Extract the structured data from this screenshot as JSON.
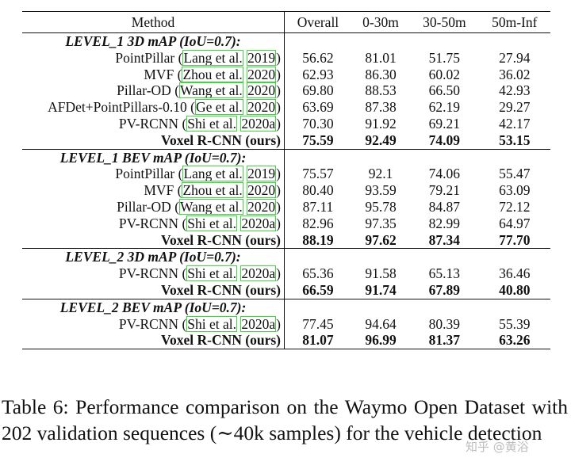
{
  "table": {
    "headers": [
      "Method",
      "Overall",
      "0-30m",
      "30-50m",
      "50m-Inf"
    ],
    "sections": [
      {
        "title": "LEVEL_1 3D mAP (IoU=0.7):",
        "rows": [
          {
            "name": "PointPillar",
            "cite_author": "Lang et al.",
            "cite_year": "2019",
            "v": [
              "56.62",
              "81.01",
              "51.75",
              "27.94"
            ]
          },
          {
            "name": "MVF",
            "cite_author": "Zhou et al.",
            "cite_year": "2020",
            "v": [
              "62.93",
              "86.30",
              "60.02",
              "36.02"
            ]
          },
          {
            "name": "Pillar-OD",
            "cite_author": "Wang et al.",
            "cite_year": "2020",
            "v": [
              "69.80",
              "88.53",
              "66.50",
              "42.93"
            ]
          },
          {
            "name": "AFDet+PointPillars-0.10",
            "cite_author": "Ge et al.",
            "cite_year": "2020",
            "v": [
              "63.69",
              "87.38",
              "62.19",
              "29.27"
            ]
          },
          {
            "name": "PV-RCNN",
            "cite_author": "Shi et al.",
            "cite_year": "2020a",
            "v": [
              "70.30",
              "91.92",
              "69.21",
              "42.17"
            ]
          }
        ],
        "best": {
          "name": "Voxel R-CNN (ours)",
          "v": [
            "75.59",
            "92.49",
            "74.09",
            "53.15"
          ]
        }
      },
      {
        "title": "LEVEL_1 BEV mAP (IoU=0.7):",
        "rows": [
          {
            "name": "PointPillar",
            "cite_author": "Lang et al.",
            "cite_year": "2019",
            "v": [
              "75.57",
              "92.1",
              "74.06",
              "55.47"
            ]
          },
          {
            "name": "MVF",
            "cite_author": "Zhou et al.",
            "cite_year": "2020",
            "v": [
              "80.40",
              "93.59",
              "79.21",
              "63.09"
            ]
          },
          {
            "name": "Pillar-OD",
            "cite_author": "Wang et al.",
            "cite_year": "2020",
            "v": [
              "87.11",
              "95.78",
              "84.87",
              "72.12"
            ]
          },
          {
            "name": "PV-RCNN",
            "cite_author": "Shi et al.",
            "cite_year": "2020a",
            "v": [
              "82.96",
              "97.35",
              "82.99",
              "64.97"
            ]
          }
        ],
        "best": {
          "name": "Voxel R-CNN (ours)",
          "v": [
            "88.19",
            "97.62",
            "87.34",
            "77.70"
          ]
        }
      },
      {
        "title": "LEVEL_2 3D mAP (IoU=0.7):",
        "rows": [
          {
            "name": "PV-RCNN",
            "cite_author": "Shi et al.",
            "cite_year": "2020a",
            "v": [
              "65.36",
              "91.58",
              "65.13",
              "36.46"
            ]
          }
        ],
        "best": {
          "name": "Voxel R-CNN (ours)",
          "v": [
            "66.59",
            "91.74",
            "67.89",
            "40.80"
          ]
        }
      },
      {
        "title": "LEVEL_2 BEV mAP (IoU=0.7):",
        "rows": [
          {
            "name": "PV-RCNN",
            "cite_author": "Shi et al.",
            "cite_year": "2020a",
            "v": [
              "77.45",
              "94.64",
              "80.39",
              "55.39"
            ]
          }
        ],
        "best": {
          "name": "Voxel R-CNN (ours)",
          "v": [
            "81.07",
            "96.99",
            "81.37",
            "63.26"
          ]
        }
      }
    ]
  },
  "caption": "Table 6: Performance comparison on the Waymo Open Dataset with 202 validation sequences (∼40k samples) for the vehicle detection",
  "watermark": "知乎 @黄浴",
  "colors": {
    "citation_box": "#3ed63e",
    "text": "#111111"
  }
}
